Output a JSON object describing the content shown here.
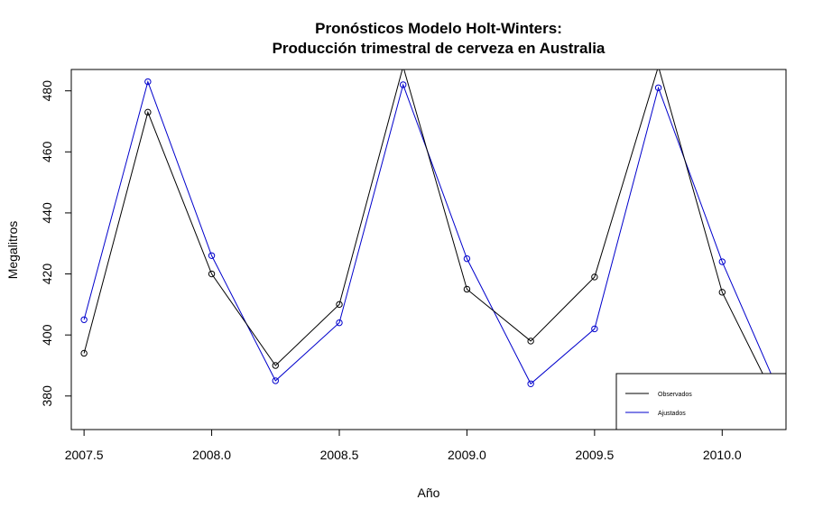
{
  "chart_data": {
    "type": "line",
    "title": "Pronósticos Modelo Holt-Winters:",
    "subtitle": "Producción trimestral de cerveza en Australia",
    "xlabel": "Año",
    "ylabel": "Megalitros",
    "xlim": [
      2007.45,
      2010.25
    ],
    "ylim": [
      369,
      487
    ],
    "x_ticks": [
      "2007.5",
      "2008.0",
      "2008.5",
      "2009.0",
      "2009.5",
      "2010.0"
    ],
    "y_ticks": [
      "380",
      "400",
      "420",
      "440",
      "460",
      "480"
    ],
    "x": [
      2007.5,
      2007.75,
      2008.0,
      2008.25,
      2008.5,
      2008.75,
      2009.0,
      2009.25,
      2009.5,
      2009.75,
      2010.0,
      2010.25
    ],
    "series": [
      {
        "name": "Observados",
        "color": "#000000",
        "values": [
          394,
          473,
          420,
          390,
          410,
          488,
          415,
          398,
          419,
          488,
          414,
          372
        ]
      },
      {
        "name": "Ajustados",
        "color": "#0000cc",
        "values": [
          405,
          483,
          426,
          385,
          404,
          482,
          425,
          384,
          402,
          481,
          424,
          376
        ]
      }
    ],
    "legend_position": "bottom-right",
    "grid": false
  }
}
